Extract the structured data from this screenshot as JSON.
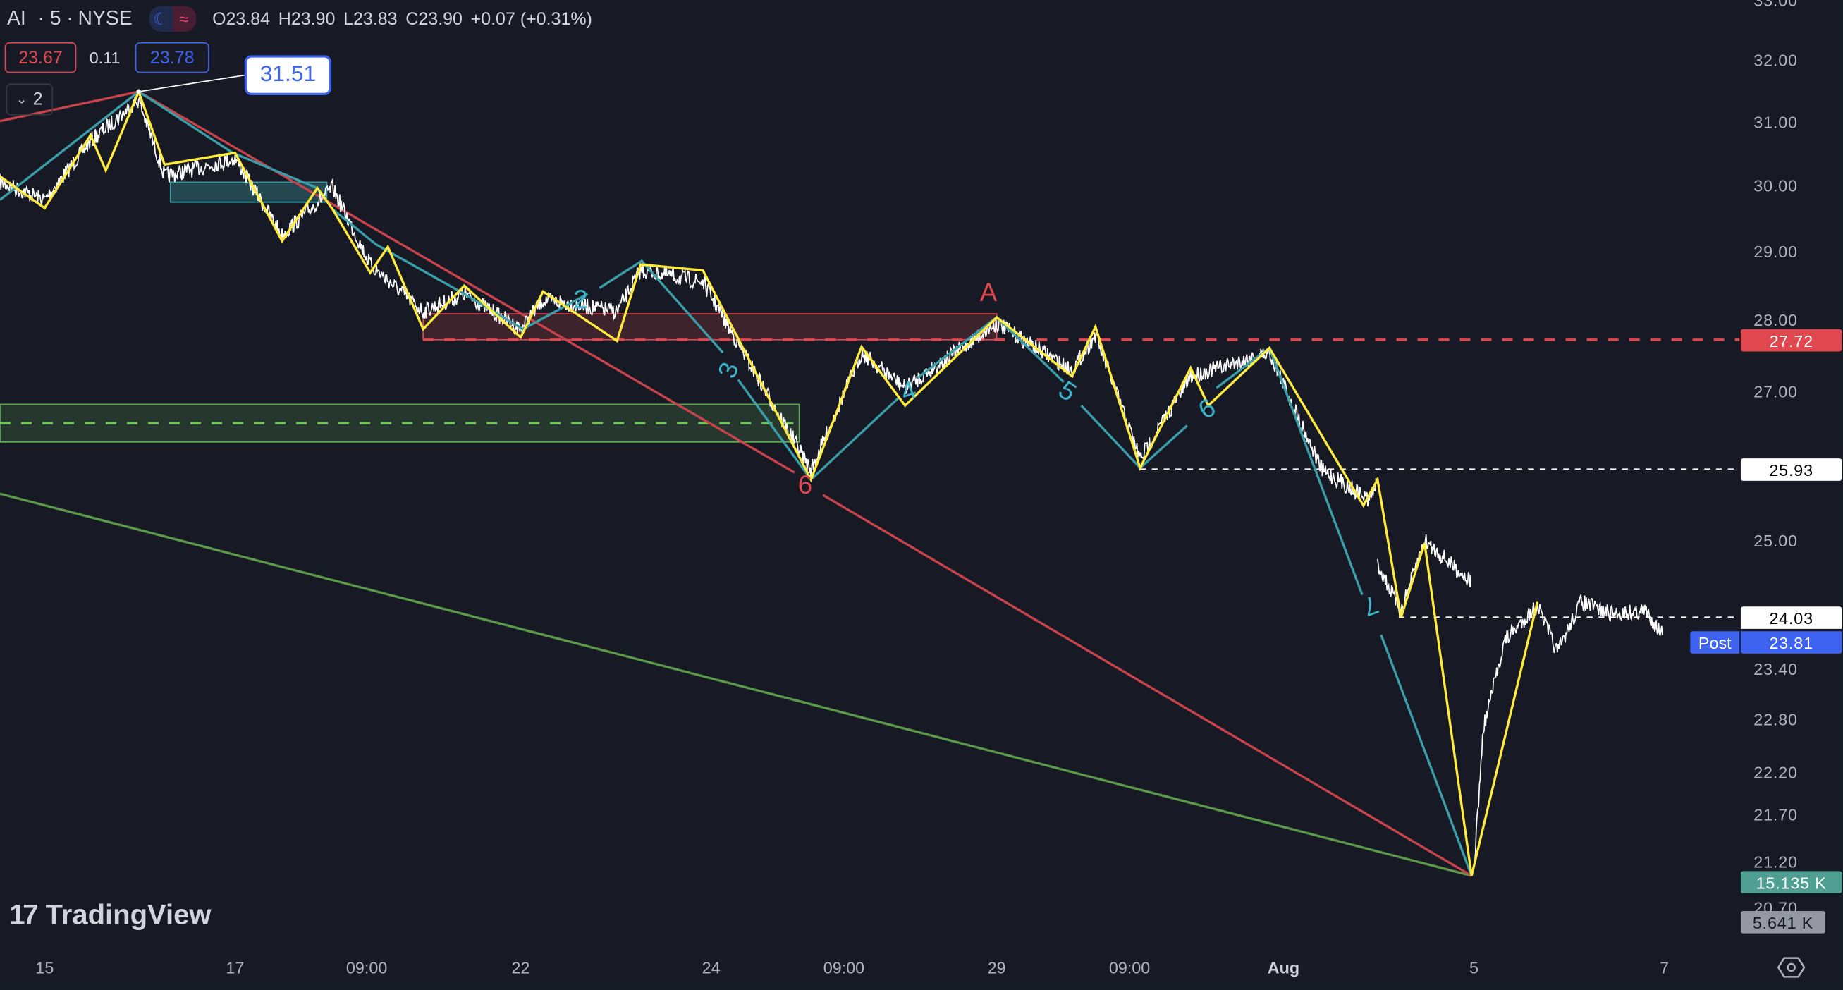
{
  "header": {
    "symbol": "AI",
    "interval": "· 5 ·",
    "exchange": "NYSE",
    "open": "O23.84",
    "high": "H23.90",
    "low": "L23.83",
    "close": "C23.90",
    "change": "+0.07 (+0.31%)"
  },
  "quote": {
    "bid": "23.67",
    "spread": "0.11",
    "ask": "23.78"
  },
  "indicators_toggle": {
    "label": "2"
  },
  "annotation": {
    "high_label": "31.51"
  },
  "price_axis": {
    "ticks": [
      "33.00",
      "32.00",
      "31.00",
      "30.00",
      "29.00",
      "28.00",
      "27.00",
      "25.00",
      "23.40",
      "22.80",
      "22.20",
      "21.70",
      "21.20",
      "20.70"
    ]
  },
  "price_tags": {
    "resistance": "27.72",
    "level_1": "25.93",
    "level_2": "24.03",
    "post_label": "Post",
    "post_price": "23.81",
    "volume_1": "15.135 K",
    "volume_2": "5.641 K"
  },
  "time_axis": {
    "labels": [
      "15",
      "17",
      "09:00",
      "22",
      "24",
      "09:00",
      "29",
      "09:00",
      "Aug",
      "5",
      "7"
    ]
  },
  "wave_labels": {
    "teal": [
      "2",
      "3",
      "4",
      "5",
      "6",
      "7"
    ],
    "red": [
      "6",
      "A"
    ]
  },
  "logo": {
    "text": "TradingView"
  },
  "colors": {
    "background": "#171a25",
    "yellow": "#ffeb3b",
    "teal": "#3a9ea9",
    "red": "#e0474f",
    "green": "#5b9a48",
    "blue": "#2962ff",
    "post": "#3d63f0"
  }
}
